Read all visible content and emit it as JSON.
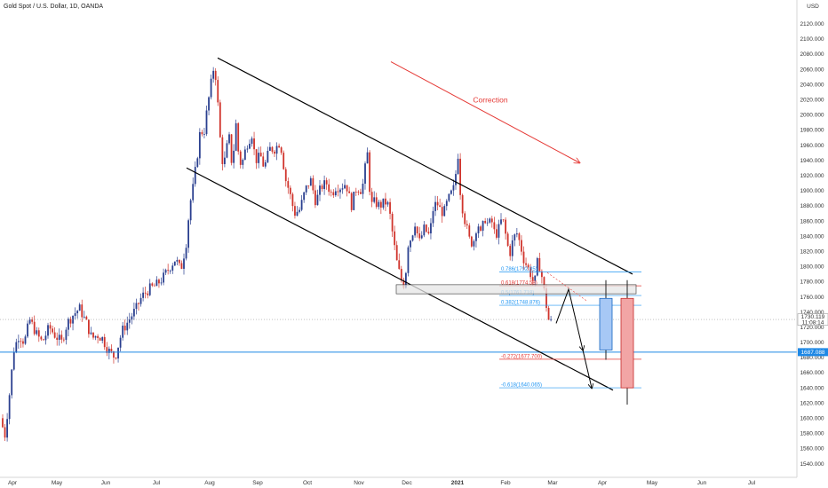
{
  "header": {
    "title": "Gold Spot / U.S. Dollar, 1D, OANDA",
    "currency": "USD"
  },
  "colors": {
    "up": "#2a3f8f",
    "down": "#d0342c",
    "price_line": "#1e88e5",
    "fib_blue": "#2196f3",
    "fib_red": "#e53935",
    "channel": "#000000",
    "correction": "#e53935",
    "projection_blue": "#a7c8f5",
    "projection_red": "#f2a5a5"
  },
  "chart_data": {
    "type": "candlestick",
    "instrument": "Gold Spot / U.S. Dollar",
    "interval": "1D",
    "source": "OANDA",
    "ylim": [
      1522,
      2135
    ],
    "yticks": [
      1540,
      1560,
      1580,
      1600,
      1620,
      1640,
      1660,
      1680,
      1700,
      1720,
      1740,
      1760,
      1780,
      1800,
      1820,
      1840,
      1860,
      1880,
      1900,
      1920,
      1940,
      1960,
      1980,
      2000,
      2020,
      2040,
      2060,
      2080,
      2100,
      2120
    ],
    "yticks_label": [
      "1540.000",
      "1560.000",
      "1580.000",
      "1600.000",
      "1620.000",
      "1640.000",
      "1660.000",
      "1680.000",
      "1700.000",
      "1720.000",
      "1740.000",
      "1760.000",
      "1780.000",
      "1800.000",
      "1820.000",
      "1840.000",
      "1860.000",
      "1880.000",
      "1900.000",
      "1920.000",
      "1940.000",
      "1960.000",
      "1980.000",
      "2000.000",
      "2020.000",
      "2040.000",
      "2060.000",
      "2080.000",
      "2100.000",
      "2120.000"
    ],
    "xticks": [
      "Apr",
      "May",
      "Jun",
      "Jul",
      "Aug",
      "Sep",
      "Oct",
      "Nov",
      "Dec",
      "2021",
      "Feb",
      "Mar",
      "Apr",
      "May",
      "Jun",
      "Jul"
    ],
    "price_labels": {
      "last_price": "1730.119",
      "countdown": "11:08:14",
      "level_line": "1687.088"
    },
    "current_price": 1730.119,
    "horizontal_level": 1687.088,
    "candles_summary": [
      {
        "period": "Apr 2020",
        "open": 1577,
        "high": 1747,
        "low": 1568,
        "close": 1686
      },
      {
        "period": "May 2020",
        "open": 1686,
        "high": 1765,
        "low": 1670,
        "close": 1730
      },
      {
        "period": "Jun 2020",
        "open": 1730,
        "high": 1790,
        "low": 1671,
        "close": 1780
      },
      {
        "period": "Jul 2020",
        "open": 1780,
        "high": 1985,
        "low": 1757,
        "close": 1975
      },
      {
        "period": "Aug 2020",
        "open": 1975,
        "high": 2075,
        "low": 1863,
        "close": 1968
      },
      {
        "period": "Sep 2020",
        "open": 1968,
        "high": 1992,
        "low": 1848,
        "close": 1886
      },
      {
        "period": "Oct 2020",
        "open": 1886,
        "high": 1933,
        "low": 1860,
        "close": 1879
      },
      {
        "period": "Nov 2020",
        "open": 1879,
        "high": 1965,
        "low": 1764,
        "close": 1776
      },
      {
        "period": "Dec 2020",
        "open": 1776,
        "high": 1906,
        "low": 1775,
        "close": 1898
      },
      {
        "period": "Jan 2021",
        "open": 1898,
        "high": 1959,
        "low": 1802,
        "close": 1847
      },
      {
        "period": "Feb 2021",
        "open": 1847,
        "high": 1871,
        "low": 1717,
        "close": 1734
      },
      {
        "period": "Mar 2021",
        "open": 1734,
        "high": 1740,
        "low": 1690,
        "close": 1730
      }
    ],
    "fib_levels": [
      {
        "label": "0.786(1792.85)",
        "price": 1792.85,
        "color": "blue"
      },
      {
        "label": "0.618(1774.58)",
        "price": 1774.58,
        "color": "red"
      },
      {
        "label": "0.5(1761.718)",
        "price": 1761.718,
        "color": "blue"
      },
      {
        "label": "0.382(1748.876)",
        "price": 1748.876,
        "color": "blue"
      },
      {
        "label": "-0.272(1677.700)",
        "price": 1677.7,
        "color": "red"
      },
      {
        "label": "-0.618(1640.065)",
        "price": 1640.065,
        "color": "blue"
      }
    ],
    "annotations": [
      {
        "type": "text",
        "text": "Correction"
      },
      {
        "type": "arrow",
        "meaning": "correction direction, downward"
      },
      {
        "type": "channel",
        "meaning": "descending parallel channel"
      },
      {
        "type": "zone",
        "low": 1764,
        "high": 1776
      },
      {
        "type": "projection_candle",
        "color": "blue",
        "open": 1690,
        "close": 1758,
        "high": 1782,
        "low": 1677
      },
      {
        "type": "projection_candle",
        "color": "red",
        "open": 1758,
        "close": 1640,
        "high": 1782,
        "low": 1618
      }
    ]
  }
}
